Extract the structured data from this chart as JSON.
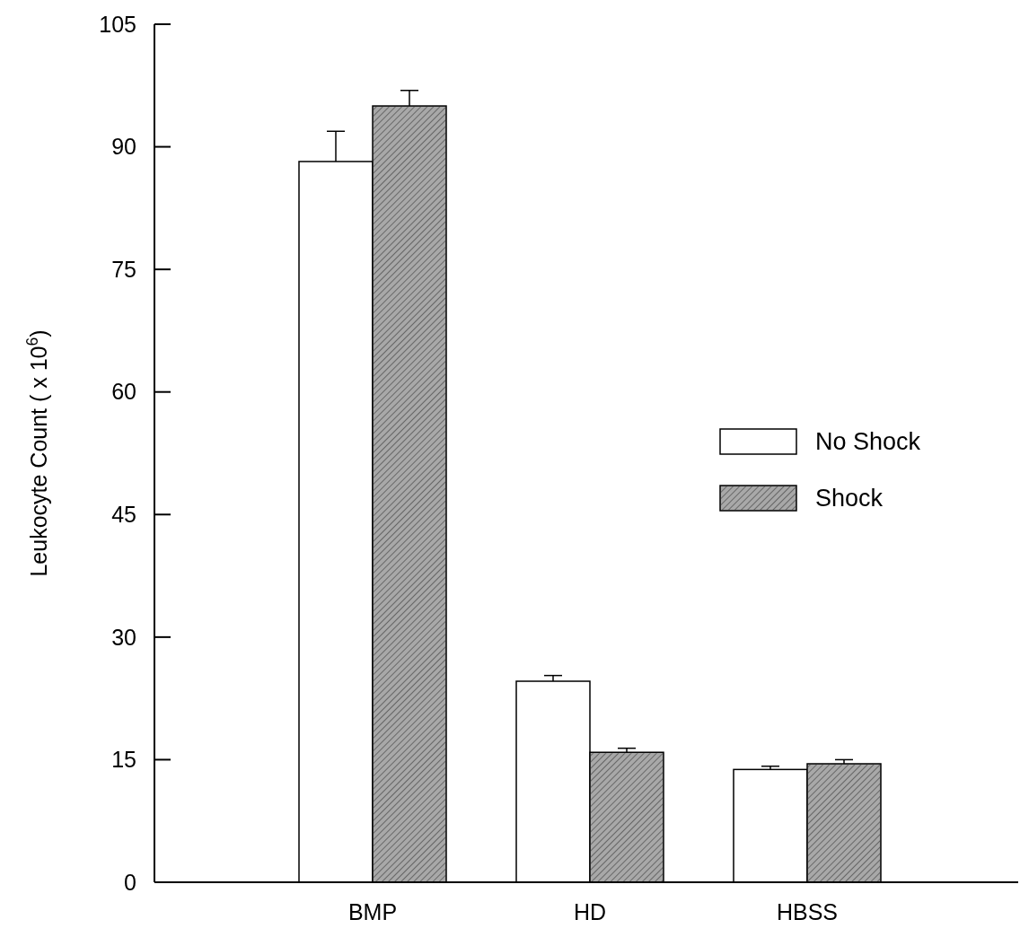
{
  "chart_data": {
    "type": "bar",
    "ylabel": "Leukocyte Count ( x 10$^{6}$)",
    "categories": [
      "BMP",
      "HD",
      "HBSS"
    ],
    "series": [
      {
        "name": "No Shock",
        "color": "#ffffff",
        "values": [
          88.2,
          24.6,
          13.8
        ],
        "errors": [
          3.7,
          0.7,
          0.4
        ]
      },
      {
        "name": "Shock",
        "color": "#a8a8a8",
        "values": [
          95,
          15.9,
          14.5
        ],
        "errors": [
          1.9,
          0.5,
          0.5
        ]
      }
    ],
    "ylim": [
      0,
      105
    ],
    "yticks": [
      0,
      15,
      30,
      45,
      60,
      75,
      90,
      105
    ],
    "legend": "right"
  }
}
